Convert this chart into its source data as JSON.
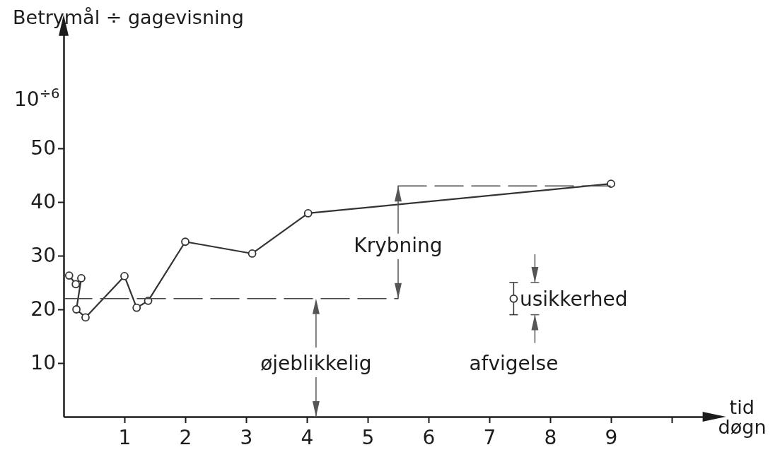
{
  "chart_data": {
    "type": "line",
    "ylabel": "Betrymål ÷ gagevisning",
    "xlabel": "tid døgn",
    "xlim": [
      0,
      10.6
    ],
    "xticks": [
      1,
      2,
      3,
      4,
      5,
      6,
      7,
      8,
      9,
      {
        "value": 10,
        "label": null
      }
    ],
    "ylim": [
      0,
      72
    ],
    "yticks": [
      10,
      20,
      30,
      40,
      50
    ],
    "marker": "circle",
    "series": [
      {
        "color": "#333333",
        "x": [
          0.09,
          0.2,
          0.29,
          0.21,
          0.36,
          1.0,
          1.2,
          1.39,
          2.0,
          3.1,
          4.02,
          9.0
        ],
        "values": [
          26.3,
          24.7,
          25.8,
          20,
          18.5,
          26.2,
          20.3,
          21.6,
          32.6,
          30.4,
          37.9,
          43.4
        ]
      },
      {
        "type": "line",
        "color": "#444444",
        "x": [
          0,
          5.5
        ],
        "values": [
          22,
          22
        ],
        "marker": "none",
        "line_style": "dashed"
      },
      {
        "type": "line",
        "color": "#444444",
        "x": [
          5.5,
          9
        ],
        "values": [
          43,
          43
        ],
        "marker": "none",
        "line_style": "dashed"
      },
      {
        "type": "scatter",
        "color": "#333333",
        "x": [
          7.4
        ],
        "values": [
          22
        ],
        "errors": [
          3
        ]
      }
    ],
    "annotations": [
      "10$^{÷6}$",
      "Krybning",
      "øjeblikkelig",
      "usikkerhed",
      "afvigelse"
    ]
  }
}
